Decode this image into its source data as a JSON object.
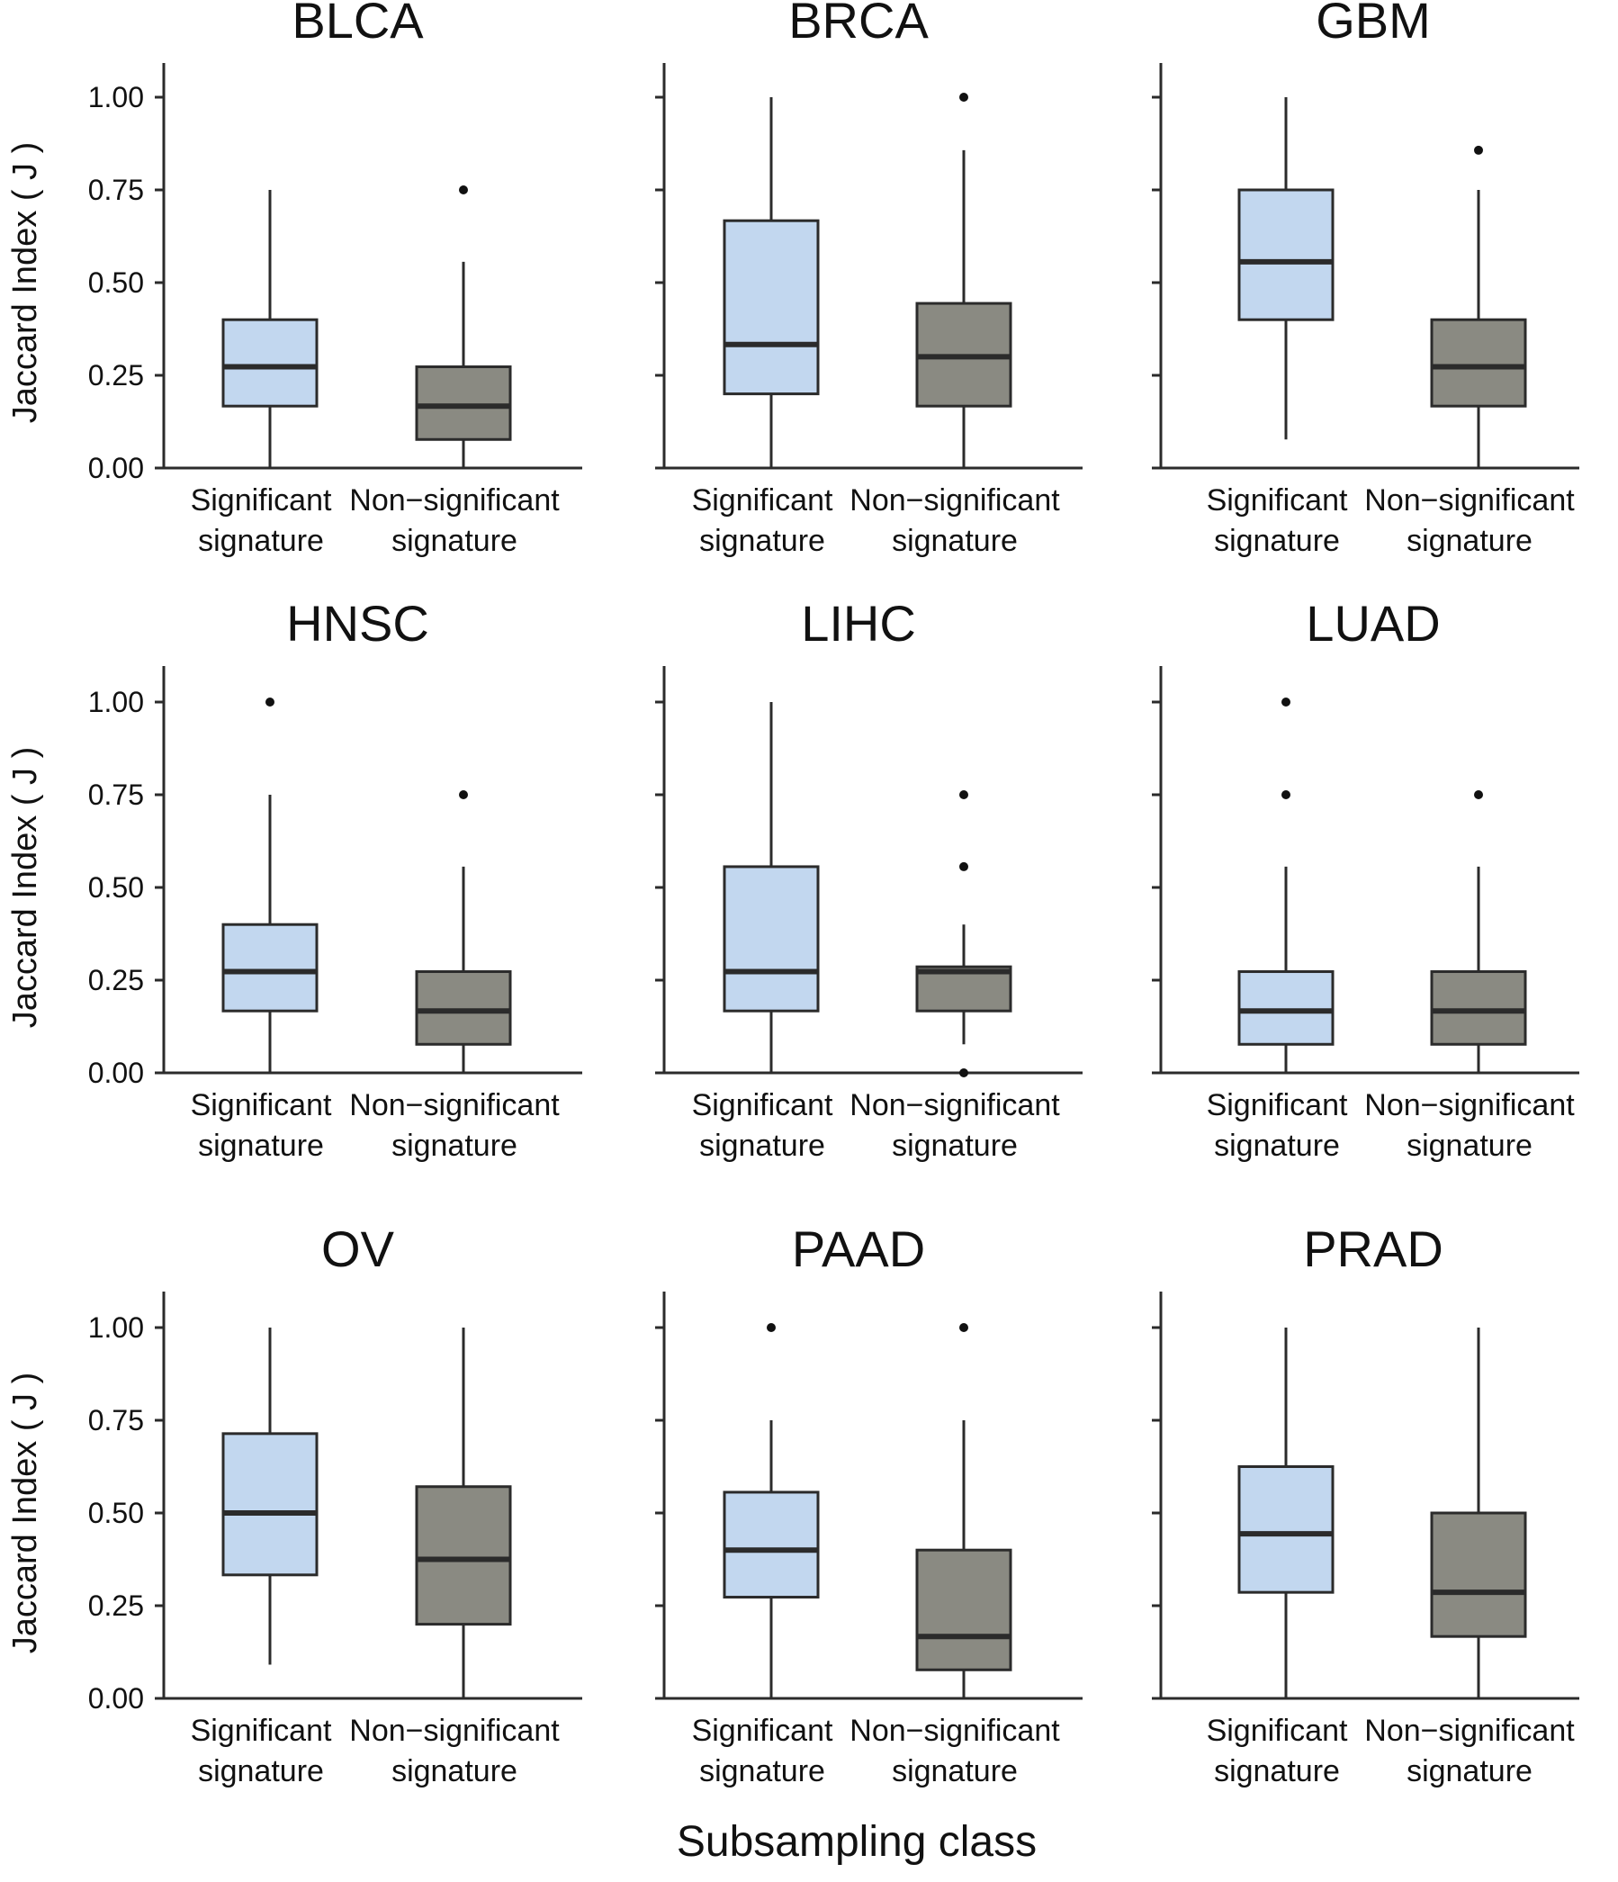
{
  "figure": {
    "xlabel": "Subsampling class",
    "ylabel": "Jaccard Index ( J )",
    "box_colors": {
      "Significant signature": "#c2d7ef",
      "Non-significant signature": "#8a8a82"
    },
    "line_color": "#2b2b2b"
  },
  "chart_data": [
    {
      "type": "box",
      "title": "BLCA",
      "ylim": [
        0,
        1.1
      ],
      "yticks": [
        0.0,
        0.25,
        0.5,
        0.75,
        1.0
      ],
      "ytick_labels": [
        "0.00",
        "0.25",
        "0.50",
        "0.75",
        "1.00"
      ],
      "categories": [
        "Significant signature",
        "Non-significant signature"
      ],
      "category_lines": [
        [
          "Significant",
          "signature"
        ],
        [
          "Non−significant",
          "signature"
        ]
      ],
      "boxes": [
        {
          "whislo": 0.0,
          "q1": 0.167,
          "med": 0.273,
          "q3": 0.4,
          "whishi": 0.75,
          "fliers": []
        },
        {
          "whislo": 0.0,
          "q1": 0.077,
          "med": 0.167,
          "q3": 0.273,
          "whishi": 0.556,
          "fliers": [
            0.75
          ]
        }
      ]
    },
    {
      "type": "box",
      "title": "BRCA",
      "ylim": [
        0,
        1.1
      ],
      "yticks": [
        0.0,
        0.25,
        0.5,
        0.75,
        1.0
      ],
      "ytick_labels": [],
      "categories": [
        "Significant signature",
        "Non-significant signature"
      ],
      "category_lines": [
        [
          "Significant",
          "signature"
        ],
        [
          "Non−significant",
          "signature"
        ]
      ],
      "boxes": [
        {
          "whislo": 0.0,
          "q1": 0.2,
          "med": 0.333,
          "q3": 0.667,
          "whishi": 1.0,
          "fliers": []
        },
        {
          "whislo": 0.0,
          "q1": 0.167,
          "med": 0.3,
          "q3": 0.444,
          "whishi": 0.857,
          "fliers": [
            1.0
          ]
        }
      ]
    },
    {
      "type": "box",
      "title": "GBM",
      "ylim": [
        0,
        1.1
      ],
      "yticks": [
        0.0,
        0.25,
        0.5,
        0.75,
        1.0
      ],
      "ytick_labels": [],
      "categories": [
        "Significant signature",
        "Non-significant signature"
      ],
      "category_lines": [
        [
          "Significant",
          "signature"
        ],
        [
          "Non−significant",
          "signature"
        ]
      ],
      "boxes": [
        {
          "whislo": 0.077,
          "q1": 0.4,
          "med": 0.556,
          "q3": 0.75,
          "whishi": 1.0,
          "fliers": []
        },
        {
          "whislo": 0.0,
          "q1": 0.167,
          "med": 0.273,
          "q3": 0.4,
          "whishi": 0.75,
          "fliers": [
            0.857
          ]
        }
      ]
    },
    {
      "type": "box",
      "title": "HNSC",
      "ylim": [
        0,
        1.1
      ],
      "yticks": [
        0.0,
        0.25,
        0.5,
        0.75,
        1.0
      ],
      "ytick_labels": [
        "0.00",
        "0.25",
        "0.50",
        "0.75",
        "1.00"
      ],
      "categories": [
        "Significant signature",
        "Non-significant signature"
      ],
      "category_lines": [
        [
          "Significant",
          "signature"
        ],
        [
          "Non−significant",
          "signature"
        ]
      ],
      "boxes": [
        {
          "whislo": 0.0,
          "q1": 0.167,
          "med": 0.273,
          "q3": 0.4,
          "whishi": 0.75,
          "fliers": [
            1.0
          ]
        },
        {
          "whislo": 0.0,
          "q1": 0.077,
          "med": 0.167,
          "q3": 0.273,
          "whishi": 0.556,
          "fliers": [
            0.75
          ]
        }
      ]
    },
    {
      "type": "box",
      "title": "LIHC",
      "ylim": [
        0,
        1.1
      ],
      "yticks": [
        0.0,
        0.25,
        0.5,
        0.75,
        1.0
      ],
      "ytick_labels": [],
      "categories": [
        "Significant signature",
        "Non-significant signature"
      ],
      "category_lines": [
        [
          "Significant",
          "signature"
        ],
        [
          "Non−significant",
          "signature"
        ]
      ],
      "boxes": [
        {
          "whislo": 0.0,
          "q1": 0.167,
          "med": 0.273,
          "q3": 0.556,
          "whishi": 1.0,
          "fliers": []
        },
        {
          "whislo": 0.077,
          "q1": 0.167,
          "med": 0.273,
          "q3": 0.286,
          "whishi": 0.4,
          "fliers": [
            0.0,
            0.556,
            0.75
          ]
        }
      ]
    },
    {
      "type": "box",
      "title": "LUAD",
      "ylim": [
        0,
        1.1
      ],
      "yticks": [
        0.0,
        0.25,
        0.5,
        0.75,
        1.0
      ],
      "ytick_labels": [],
      "categories": [
        "Significant signature",
        "Non-significant signature"
      ],
      "category_lines": [
        [
          "Significant",
          "signature"
        ],
        [
          "Non−significant",
          "signature"
        ]
      ],
      "boxes": [
        {
          "whislo": 0.0,
          "q1": 0.077,
          "med": 0.167,
          "q3": 0.273,
          "whishi": 0.556,
          "fliers": [
            0.75,
            1.0
          ]
        },
        {
          "whislo": 0.0,
          "q1": 0.077,
          "med": 0.167,
          "q3": 0.273,
          "whishi": 0.556,
          "fliers": [
            0.75
          ]
        }
      ]
    },
    {
      "type": "box",
      "title": "OV",
      "ylim": [
        0,
        1.1
      ],
      "yticks": [
        0.0,
        0.25,
        0.5,
        0.75,
        1.0
      ],
      "ytick_labels": [
        "0.00",
        "0.25",
        "0.50",
        "0.75",
        "1.00"
      ],
      "categories": [
        "Significant signature",
        "Non-significant signature"
      ],
      "category_lines": [
        [
          "Significant",
          "signature"
        ],
        [
          "Non−significant",
          "signature"
        ]
      ],
      "boxes": [
        {
          "whislo": 0.091,
          "q1": 0.333,
          "med": 0.5,
          "q3": 0.714,
          "whishi": 1.0,
          "fliers": []
        },
        {
          "whislo": 0.0,
          "q1": 0.2,
          "med": 0.375,
          "q3": 0.571,
          "whishi": 1.0,
          "fliers": []
        }
      ]
    },
    {
      "type": "box",
      "title": "PAAD",
      "ylim": [
        0,
        1.1
      ],
      "yticks": [
        0.0,
        0.25,
        0.5,
        0.75,
        1.0
      ],
      "ytick_labels": [],
      "categories": [
        "Significant signature",
        "Non-significant signature"
      ],
      "category_lines": [
        [
          "Significant",
          "signature"
        ],
        [
          "Non−significant",
          "signature"
        ]
      ],
      "boxes": [
        {
          "whislo": 0.0,
          "q1": 0.273,
          "med": 0.4,
          "q3": 0.556,
          "whishi": 0.75,
          "fliers": [
            1.0
          ]
        },
        {
          "whislo": 0.0,
          "q1": 0.077,
          "med": 0.167,
          "q3": 0.4,
          "whishi": 0.75,
          "fliers": [
            1.0
          ]
        }
      ]
    },
    {
      "type": "box",
      "title": "PRAD",
      "ylim": [
        0,
        1.1
      ],
      "yticks": [
        0.0,
        0.25,
        0.5,
        0.75,
        1.0
      ],
      "ytick_labels": [],
      "categories": [
        "Significant signature",
        "Non-significant signature"
      ],
      "category_lines": [
        [
          "Significant",
          "signature"
        ],
        [
          "Non−significant",
          "signature"
        ]
      ],
      "boxes": [
        {
          "whislo": 0.0,
          "q1": 0.286,
          "med": 0.444,
          "q3": 0.625,
          "whishi": 1.0,
          "fliers": []
        },
        {
          "whislo": 0.0,
          "q1": 0.167,
          "med": 0.286,
          "q3": 0.5,
          "whishi": 1.0,
          "fliers": []
        }
      ]
    }
  ]
}
